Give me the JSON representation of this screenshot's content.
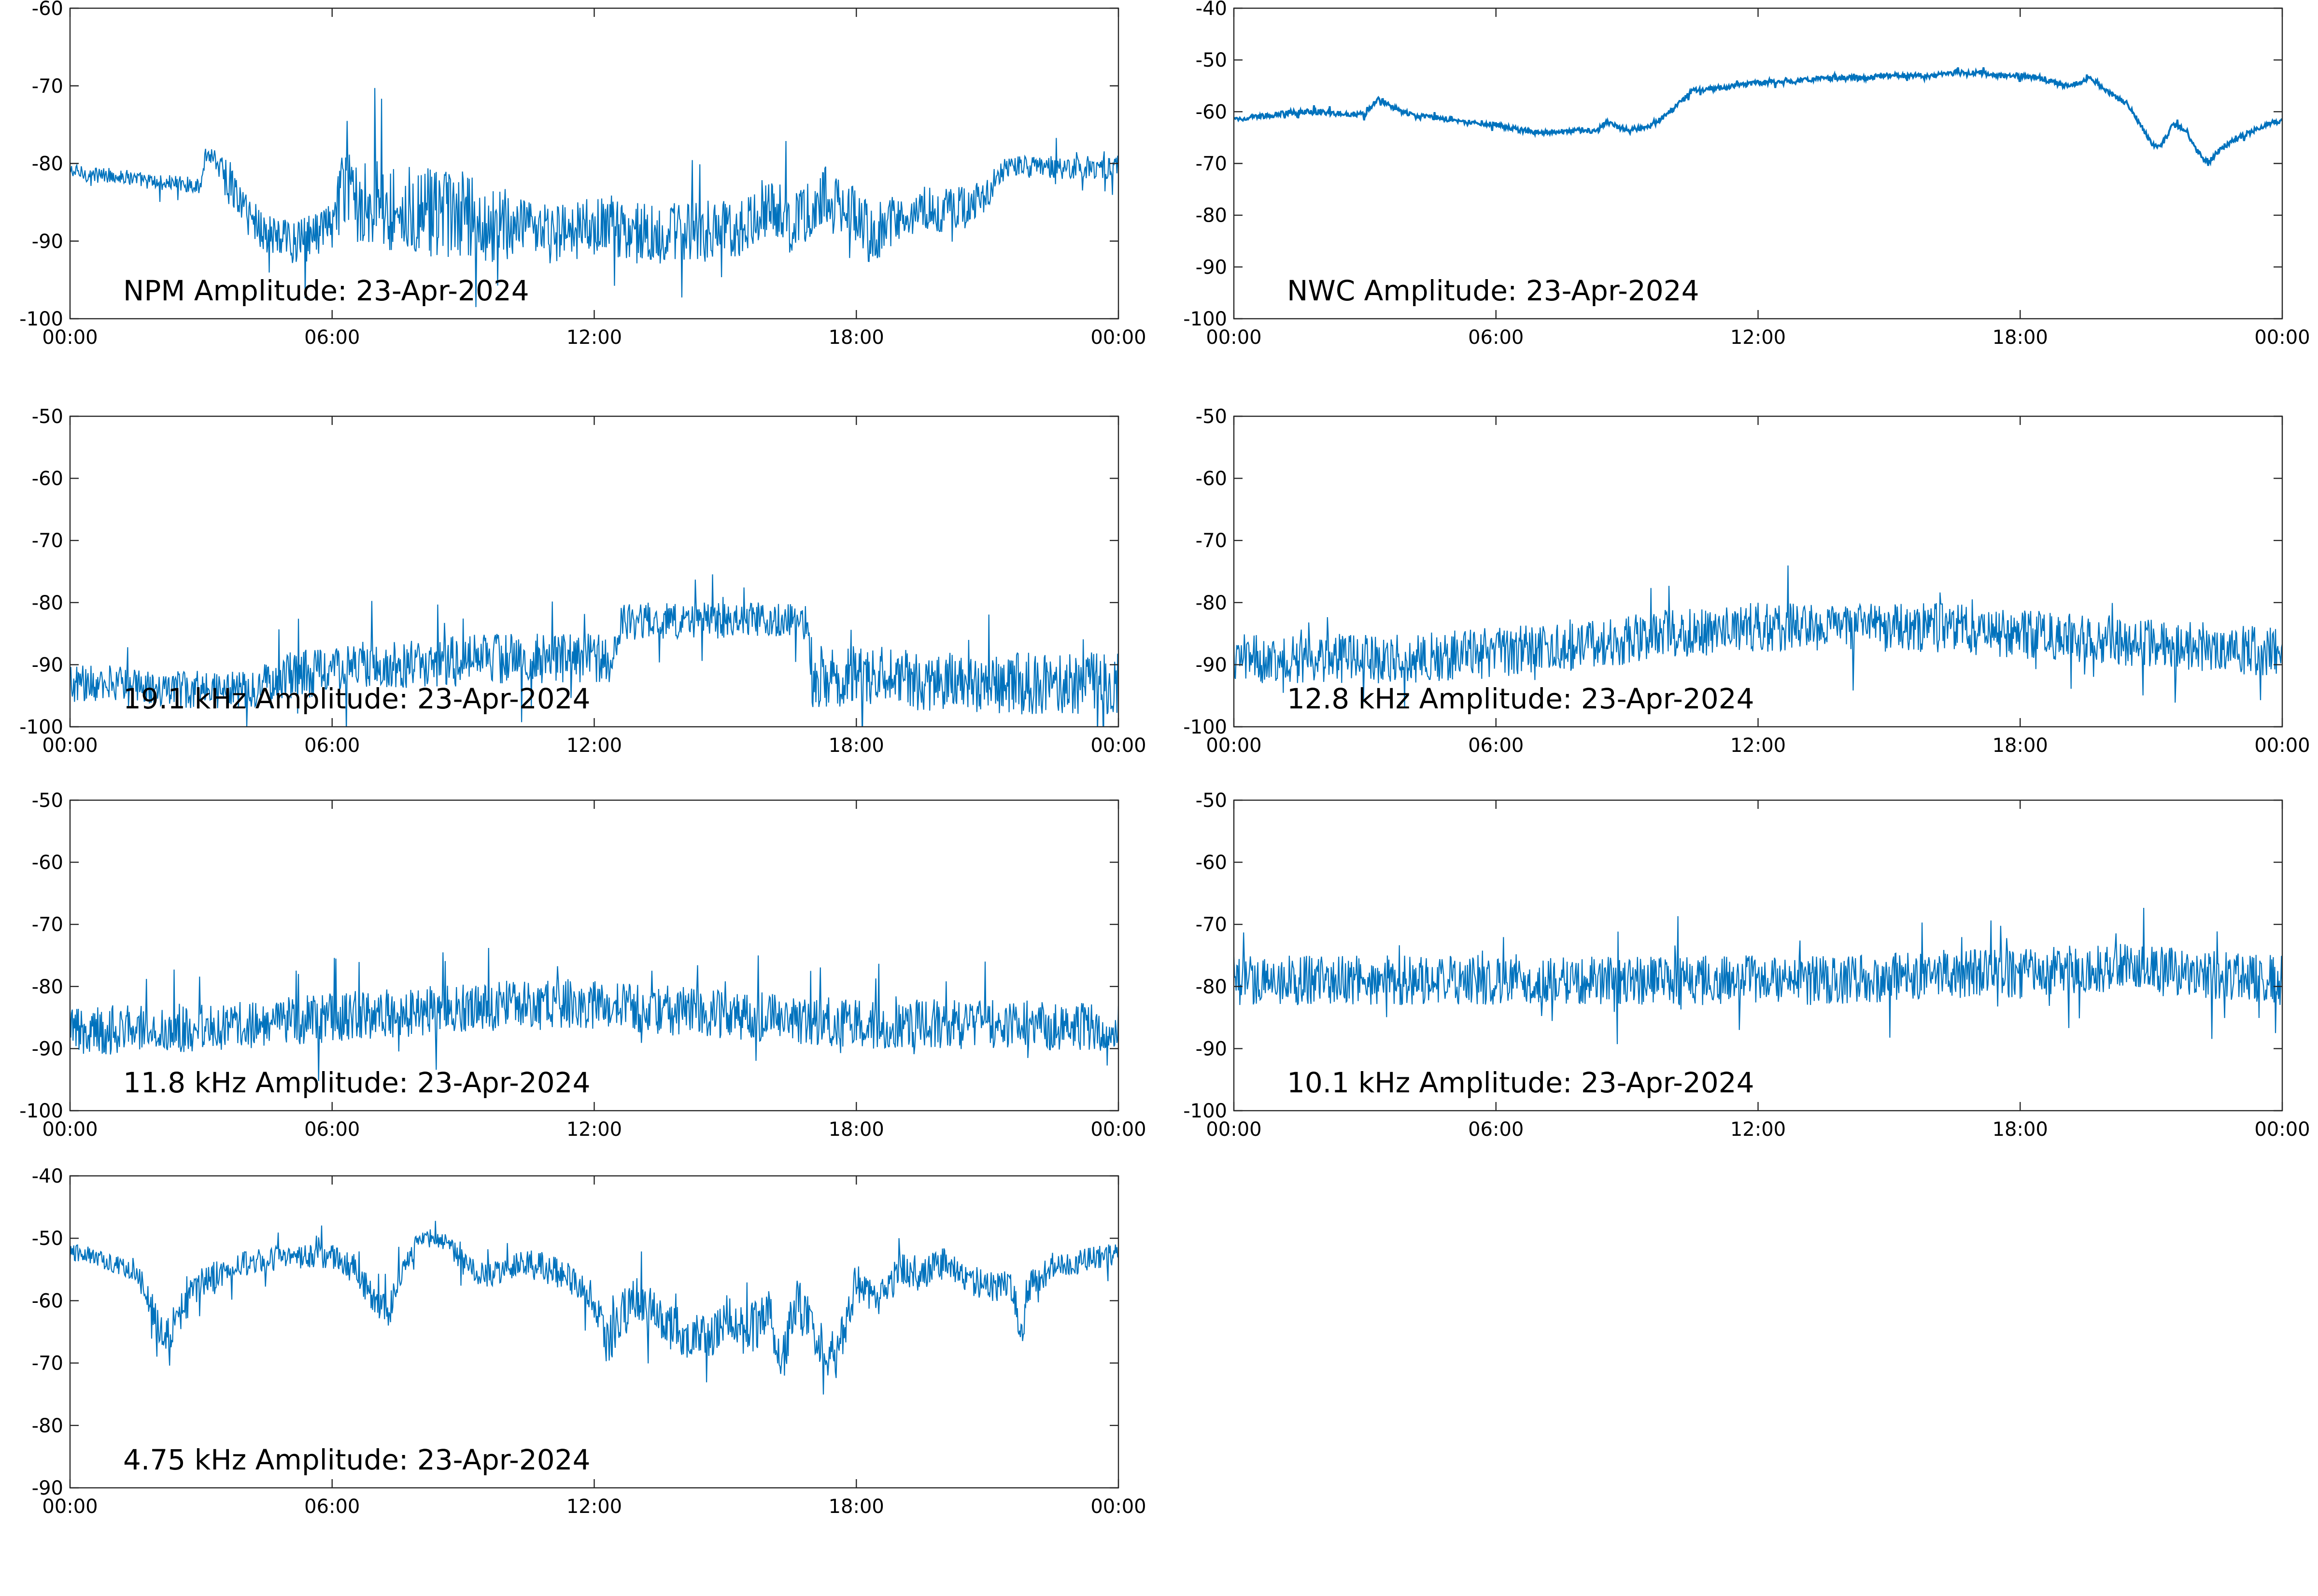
{
  "figure": {
    "line_color": "#0072BD",
    "x_ticks": [
      "00:00",
      "06:00",
      "12:00",
      "18:00",
      "00:00"
    ],
    "x_range_hours": [
      0,
      24
    ]
  },
  "chart_data": [
    {
      "type": "line",
      "label": "NPM Amplitude: 23-Apr-2024",
      "ylim": [
        -100,
        -60
      ],
      "y_ticks": [
        -60,
        -70,
        -80,
        -90,
        -100
      ],
      "series": [
        {
          "x": [
            0,
            0.5,
            1,
            1.5,
            2,
            2.5,
            3,
            3.1,
            3.3,
            3.6,
            4,
            4.5,
            5,
            5.3,
            5.7,
            6,
            6.2,
            6.5,
            7,
            7.5,
            8,
            8.5,
            9,
            9.5,
            10,
            10.5,
            11,
            11.5,
            12,
            12.5,
            13,
            13.5,
            14,
            14.5,
            15,
            15.5,
            16,
            16.3,
            16.5,
            17,
            17.3,
            17.6,
            18,
            18.3,
            18.6,
            19,
            19.5,
            20,
            20.5,
            21,
            21.3,
            21.5,
            22,
            22.5,
            23,
            23.5,
            24
          ],
          "y": [
            -81,
            -81.5,
            -81.5,
            -82,
            -82.5,
            -82.5,
            -83,
            -79,
            -79,
            -82,
            -86,
            -89,
            -90,
            -90,
            -89,
            -88,
            -84,
            -84,
            -85,
            -86,
            -86,
            -87,
            -87,
            -88,
            -88,
            -89,
            -89,
            -89,
            -88,
            -88,
            -89,
            -89,
            -89,
            -89,
            -88,
            -88,
            -85,
            -86,
            -88,
            -86,
            -84,
            -86,
            -87,
            -89,
            -88,
            -87,
            -86,
            -86,
            -86,
            -84,
            -81,
            -80.5,
            -80.5,
            -80.5,
            -80.5,
            -80.5,
            -80.5
          ],
          "spread": [
            1,
            1,
            1,
            1,
            1,
            1,
            1,
            1,
            1.5,
            3,
            3,
            3,
            3,
            3,
            3,
            3,
            5,
            6,
            6,
            6,
            6,
            6,
            6,
            5,
            5,
            4,
            4,
            4,
            4,
            4,
            4,
            4,
            4,
            4,
            4,
            4,
            4,
            4,
            4,
            4,
            4,
            4,
            4,
            4,
            4,
            3,
            3,
            3,
            3,
            2,
            1.5,
            1.5,
            1.5,
            1.5,
            1.5,
            1.5,
            1.5
          ]
        }
      ]
    },
    {
      "type": "line",
      "label": "NWC Amplitude: 23-Apr-2024",
      "ylim": [
        -100,
        -40
      ],
      "y_ticks": [
        -40,
        -50,
        -60,
        -70,
        -80,
        -90,
        -100
      ],
      "series": [
        {
          "x": [
            0,
            0.5,
            1,
            1.5,
            2,
            2.5,
            3,
            3.3,
            3.6,
            4,
            4.2,
            4.5,
            5,
            5.5,
            6,
            6.5,
            7,
            7.5,
            8,
            8.3,
            8.5,
            8.8,
            9,
            9.5,
            10,
            10.5,
            11,
            11.5,
            12,
            12.5,
            13,
            13.5,
            14,
            14.5,
            15,
            15.5,
            16,
            16.5,
            17,
            17.5,
            18,
            18.5,
            19,
            19.3,
            19.6,
            20,
            20.5,
            21,
            21.2,
            21.5,
            21.8,
            22,
            22.3,
            22.6,
            23,
            23.5,
            24
          ],
          "y": [
            -61.5,
            -61,
            -60.5,
            -60,
            -60,
            -60.5,
            -60.5,
            -57.5,
            -59,
            -60.5,
            -61,
            -61,
            -61.5,
            -62,
            -62.5,
            -63.5,
            -64,
            -64,
            -63.5,
            -64,
            -62,
            -63,
            -63.5,
            -63,
            -60,
            -56,
            -55.5,
            -55,
            -54.5,
            -54,
            -54,
            -53.5,
            -53.5,
            -53.5,
            -53,
            -53,
            -53,
            -52.5,
            -52.5,
            -53,
            -53,
            -53.5,
            -55,
            -54.5,
            -53.5,
            -56,
            -59,
            -66,
            -67,
            -62.5,
            -63.5,
            -67,
            -70,
            -67,
            -65,
            -63,
            -61.5
          ],
          "spread": [
            0.5,
            0.5,
            0.5,
            0.5,
            0.5,
            0.5,
            0.5,
            0.5,
            0.5,
            0.5,
            0.5,
            0.5,
            0.5,
            0.5,
            0.5,
            0.5,
            0.5,
            0.5,
            0.5,
            0.5,
            0.5,
            0.5,
            0.5,
            0.5,
            0.5,
            0.5,
            0.5,
            0.5,
            0.5,
            0.5,
            0.5,
            0.5,
            0.5,
            0.5,
            0.5,
            0.5,
            0.5,
            0.5,
            0.5,
            0.5,
            0.5,
            0.5,
            0.5,
            0.5,
            0.5,
            0.5,
            0.5,
            0.5,
            0.5,
            0.5,
            0.5,
            0.5,
            0.5,
            0.5,
            0.5,
            0.5,
            0.5
          ]
        }
      ]
    },
    {
      "type": "line",
      "label": "19.1 kHz Amplitude: 23-Apr-2024",
      "ylim": [
        -100,
        -50
      ],
      "y_ticks": [
        -50,
        -60,
        -70,
        -80,
        -90,
        -100
      ],
      "series": [
        {
          "x": [
            0,
            1,
            2,
            3,
            4,
            5,
            6,
            7,
            8,
            9,
            10,
            11,
            12,
            12.5,
            12.6,
            13,
            14,
            15,
            16,
            16.9,
            17,
            18,
            19,
            20,
            21,
            22,
            23,
            24
          ],
          "y": [
            -93,
            -93,
            -94,
            -94,
            -94,
            -92,
            -91,
            -90,
            -90,
            -89,
            -89,
            -89,
            -89,
            -89,
            -83,
            -83,
            -83,
            -83,
            -83,
            -83,
            -92,
            -92,
            -92,
            -93,
            -93,
            -93,
            -93,
            -93
          ],
          "spread": [
            3,
            3,
            3,
            3,
            3,
            4,
            4,
            4,
            4,
            4,
            4,
            4,
            4,
            4,
            3,
            3,
            3,
            3,
            3,
            3,
            5,
            5,
            5,
            5,
            5,
            5,
            5,
            5
          ]
        }
      ]
    },
    {
      "type": "line",
      "label": "12.8 kHz Amplitude: 23-Apr-2024",
      "ylim": [
        -100,
        -50
      ],
      "y_ticks": [
        -50,
        -60,
        -70,
        -80,
        -90,
        -100
      ],
      "series": [
        {
          "x": [
            0,
            2,
            4,
            6,
            8,
            10,
            12,
            14,
            16,
            18,
            20,
            22,
            24
          ],
          "y": [
            -89,
            -89,
            -89,
            -88,
            -87,
            -85,
            -84,
            -84,
            -84,
            -85,
            -86,
            -87,
            -88
          ],
          "spread": [
            4,
            4,
            4,
            4,
            4,
            4,
            4,
            4,
            4,
            4,
            4,
            4,
            4
          ]
        }
      ]
    },
    {
      "type": "line",
      "label": "11.8 kHz Amplitude: 23-Apr-2024",
      "ylim": [
        -100,
        -50
      ],
      "y_ticks": [
        -50,
        -60,
        -70,
        -80,
        -90,
        -100
      ],
      "series": [
        {
          "x": [
            0,
            2,
            4,
            6,
            8,
            10,
            12,
            14,
            16,
            18,
            20,
            22,
            24
          ],
          "y": [
            -87,
            -87,
            -86,
            -85,
            -84,
            -83,
            -83,
            -84,
            -85,
            -86,
            -86,
            -86,
            -87
          ],
          "spread": [
            4,
            4,
            4,
            4,
            4,
            4,
            4,
            4,
            4,
            4,
            4,
            4,
            4
          ]
        }
      ]
    },
    {
      "type": "line",
      "label": "10.1 kHz Amplitude: 23-Apr-2024",
      "ylim": [
        -100,
        -50
      ],
      "y_ticks": [
        -50,
        -60,
        -70,
        -80,
        -90,
        -100
      ],
      "series": [
        {
          "x": [
            0,
            2,
            4,
            6,
            8,
            10,
            12,
            14,
            16,
            18,
            20,
            22,
            24
          ],
          "y": [
            -79,
            -79,
            -79,
            -79,
            -79,
            -79,
            -79,
            -79,
            -78,
            -78,
            -77,
            -78,
            -79
          ],
          "spread": [
            4,
            4,
            4,
            4,
            4,
            4,
            4,
            4,
            4,
            4,
            4,
            4,
            4
          ]
        }
      ]
    },
    {
      "type": "line",
      "label": "4.75 kHz Amplitude: 23-Apr-2024",
      "ylim": [
        -90,
        -40
      ],
      "y_ticks": [
        -40,
        -50,
        -60,
        -70,
        -80,
        -90
      ],
      "series": [
        {
          "x": [
            0,
            0.5,
            1,
            1.5,
            1.8,
            2,
            2.2,
            2.5,
            3,
            4,
            5,
            6,
            6.5,
            7,
            7.3,
            7.6,
            8,
            8.5,
            9,
            9.5,
            10,
            10.5,
            11,
            11.5,
            12,
            12.3,
            12.6,
            13,
            13.5,
            14,
            14.5,
            15,
            15.5,
            16,
            16.3,
            16.6,
            17,
            17.5,
            17.8,
            18,
            18.5,
            19,
            19.5,
            20,
            20.5,
            21,
            21.5,
            21.8,
            22,
            22.5,
            23,
            23.5,
            24
          ],
          "y": [
            -52,
            -53,
            -54,
            -55,
            -60,
            -63,
            -66,
            -62,
            -57,
            -54,
            -53,
            -53,
            -55,
            -60,
            -62,
            -55,
            -50,
            -50,
            -54,
            -56,
            -55,
            -54,
            -55,
            -57,
            -60,
            -67,
            -62,
            -60,
            -63,
            -65,
            -66,
            -63,
            -65,
            -62,
            -70,
            -60,
            -64,
            -70,
            -62,
            -57,
            -60,
            -55,
            -56,
            -54,
            -56,
            -58,
            -57,
            -65,
            -57,
            -55,
            -54,
            -53,
            -53
          ],
          "spread": [
            1.5,
            1.5,
            1.5,
            2,
            2.5,
            3,
            3,
            3,
            2.5,
            2,
            2,
            2,
            2.5,
            2.5,
            2.5,
            2,
            1.5,
            1.5,
            2,
            2,
            2,
            2.5,
            2.5,
            2.5,
            3,
            4,
            4,
            4,
            4,
            4,
            4,
            4,
            4,
            4,
            4,
            4,
            4,
            4,
            4,
            3,
            3,
            3,
            3,
            2.5,
            2.5,
            2.5,
            2.5,
            3,
            2.5,
            2,
            2,
            2,
            2
          ]
        }
      ]
    }
  ]
}
